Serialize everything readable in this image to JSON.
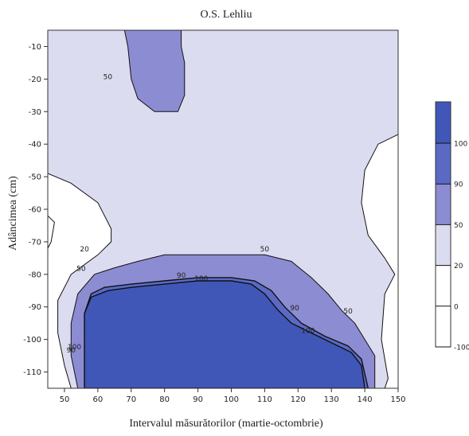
{
  "chart_data": {
    "type": "contour",
    "title": "O.S. Lehliu",
    "xlabel": "Intervalul măsurătorilor (martie-octombrie)",
    "ylabel": "Adâncimea (cm)",
    "xlim": [
      45,
      150
    ],
    "ylim": [
      -115,
      -5
    ],
    "x_ticks": [
      50,
      60,
      70,
      80,
      90,
      100,
      110,
      120,
      130,
      140,
      150
    ],
    "y_ticks": [
      -10,
      -20,
      -30,
      -40,
      -50,
      -60,
      -70,
      -80,
      -90,
      -100,
      -110
    ],
    "levels": [
      -100,
      0,
      20,
      50,
      90,
      100
    ],
    "colorbar": {
      "ticks": [
        100,
        90,
        50,
        20,
        0,
        -100
      ],
      "bands": [
        {
          "from": -100,
          "to": 0,
          "color": "#ffffff"
        },
        {
          "from": 0,
          "to": 20,
          "color": "#ffffff"
        },
        {
          "from": 20,
          "to": 50,
          "color": "#dcdcf0"
        },
        {
          "from": 50,
          "to": 90,
          "color": "#8c8cd2"
        },
        {
          "from": 90,
          "to": 100,
          "color": "#5a6ac4"
        },
        {
          "from": 100,
          "to": 110,
          "color": "#4057b8"
        }
      ]
    },
    "contour_labels": [
      {
        "text": "50",
        "x": 63,
        "y": -20
      },
      {
        "text": "20",
        "x": 56,
        "y": -73
      },
      {
        "text": "50",
        "x": 55,
        "y": -79
      },
      {
        "text": "50",
        "x": 110,
        "y": -73
      },
      {
        "text": "90",
        "x": 85,
        "y": -81
      },
      {
        "text": "100",
        "x": 91,
        "y": -82
      },
      {
        "text": "90",
        "x": 119,
        "y": -91
      },
      {
        "text": "100",
        "x": 123,
        "y": -98
      },
      {
        "text": "50",
        "x": 135,
        "y": -92
      },
      {
        "text": "90",
        "x": 52,
        "y": -104
      },
      {
        "text": "100",
        "x": 53,
        "y": -103
      }
    ],
    "regions": [
      {
        "level": 20,
        "color": "#dcdcf0",
        "points": [
          [
            45,
            -5
          ],
          [
            150,
            -5
          ],
          [
            150,
            -37
          ],
          [
            144,
            -40
          ],
          [
            140,
            -48
          ],
          [
            139,
            -58
          ],
          [
            141,
            -68
          ],
          [
            146,
            -75
          ],
          [
            149,
            -80
          ],
          [
            146,
            -86
          ],
          [
            145,
            -100
          ],
          [
            147,
            -112
          ],
          [
            146,
            -115
          ],
          [
            52,
            -115
          ],
          [
            50,
            -108
          ],
          [
            48,
            -98
          ],
          [
            48,
            -88
          ],
          [
            52,
            -80
          ],
          [
            60,
            -74
          ],
          [
            64,
            -70
          ],
          [
            64,
            -66
          ],
          [
            60,
            -58
          ],
          [
            52,
            -52
          ],
          [
            45,
            -49
          ]
        ]
      },
      {
        "level": 50,
        "color": "#8c8cd2",
        "points": [
          [
            54,
            -115
          ],
          [
            52,
            -105
          ],
          [
            52,
            -95
          ],
          [
            54,
            -86
          ],
          [
            59,
            -80
          ],
          [
            65,
            -78
          ],
          [
            72,
            -76
          ],
          [
            80,
            -74
          ],
          [
            90,
            -74
          ],
          [
            100,
            -74
          ],
          [
            110,
            -74
          ],
          [
            118,
            -76
          ],
          [
            124,
            -81
          ],
          [
            129,
            -86
          ],
          [
            133,
            -91
          ],
          [
            137,
            -95
          ],
          [
            140,
            -100
          ],
          [
            143,
            -105
          ],
          [
            143,
            -115
          ]
        ]
      },
      {
        "level": 50,
        "color": "#8c8cd2",
        "points": [
          [
            68,
            -5
          ],
          [
            69,
            -10
          ],
          [
            70,
            -20
          ],
          [
            72,
            -26
          ],
          [
            77,
            -30
          ],
          [
            84,
            -30
          ],
          [
            86,
            -25
          ],
          [
            86,
            -15
          ],
          [
            85,
            -10
          ],
          [
            85,
            -5
          ]
        ]
      },
      {
        "level": 90,
        "color": "#5a6ac4",
        "points": [
          [
            56,
            -115
          ],
          [
            56,
            -102
          ],
          [
            56,
            -92
          ],
          [
            58,
            -86
          ],
          [
            62,
            -84
          ],
          [
            70,
            -83
          ],
          [
            80,
            -82
          ],
          [
            90,
            -81
          ],
          [
            100,
            -81
          ],
          [
            107,
            -82
          ],
          [
            112,
            -85
          ],
          [
            116,
            -90
          ],
          [
            121,
            -95
          ],
          [
            128,
            -99
          ],
          [
            135,
            -102
          ],
          [
            139,
            -106
          ],
          [
            141,
            -115
          ]
        ]
      },
      {
        "level": 100,
        "color": "#4057b8",
        "points": [
          [
            56,
            -115
          ],
          [
            56,
            -102
          ],
          [
            56,
            -92
          ],
          [
            58,
            -87
          ],
          [
            63,
            -85
          ],
          [
            70,
            -84
          ],
          [
            80,
            -83
          ],
          [
            90,
            -82
          ],
          [
            100,
            -82
          ],
          [
            106,
            -83
          ],
          [
            110,
            -86
          ],
          [
            114,
            -91
          ],
          [
            118,
            -95
          ],
          [
            124,
            -98
          ],
          [
            130,
            -101
          ],
          [
            136,
            -104
          ],
          [
            139,
            -108
          ],
          [
            140,
            -115
          ]
        ]
      }
    ],
    "white_regions": [
      {
        "points": [
          [
            45,
            -62
          ],
          [
            47,
            -64
          ],
          [
            46,
            -70
          ],
          [
            45,
            -72
          ]
        ]
      }
    ]
  }
}
